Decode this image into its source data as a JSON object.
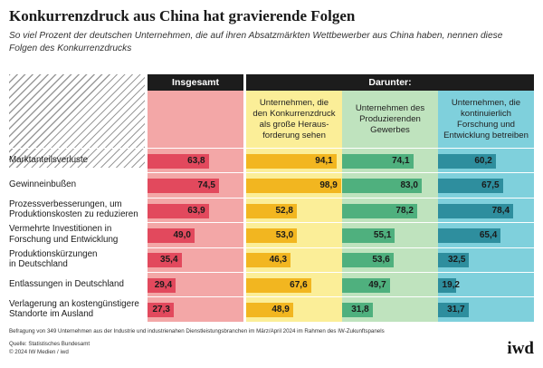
{
  "title": "Konkurrenzdruck aus China hat gravierende Folgen",
  "subtitle": "So viel Prozent der deutschen Unternehmen, die auf ihren Absatzmärkten Wettbewerber aus China haben, nennen diese Folgen des Konkurrenzdrucks",
  "header_insgesamt": "Insgesamt",
  "header_darunter": "Darunter:",
  "footnote": "Befragung von 349 Unternehmen aus der Industrie und industrienahen Dienstleistungsbranchen im März/April 2024 im Rahmen des IW-Zukunftspanels",
  "source": "Quelle: Statistisches Bundesamt",
  "copyright": "© 2024 IW Medien / iwd",
  "logo_text": "iwd",
  "colors": {
    "insgesamt_bg": "#f3a7a7",
    "insgesamt_bar": "#e2495d",
    "gross_bg": "#fbee98",
    "gross_bar": "#f2b620",
    "gewerbe_bg": "#bfe3be",
    "gewerbe_bar": "#4fb07e",
    "forschung_bg": "#7fd0dc",
    "forschung_bar": "#2e8e9e"
  },
  "chart_data": {
    "type": "bar",
    "title": "Konkurrenzdruck aus China hat gravierende Folgen",
    "categories": [
      "Marktanteilsverluste",
      "Gewinneinbußen",
      "Prozessverbesserungen, um Produktionskosten zu reduzieren",
      "Vermehrte Investitionen in Forschung und Entwicklung",
      "Produktionskürzungen in Deutschland",
      "Entlassungen in Deutschland",
      "Verlagerung an kostengünstigere Standorte im Ausland"
    ],
    "category_lines": [
      [
        "Marktanteilsverluste"
      ],
      [
        "Gewinneinbußen"
      ],
      [
        "Prozessverbesserungen, um",
        "Produktionskosten zu reduzieren"
      ],
      [
        "Vermehrte Investitionen in",
        "Forschung und Entwicklung"
      ],
      [
        "Produktionskürzungen",
        "in Deutschland"
      ],
      [
        "Entlassungen in Deutschland"
      ],
      [
        "Verlagerung an kostengünstigere",
        "Standorte im Ausland"
      ]
    ],
    "series": [
      {
        "name": "Insgesamt",
        "header_lines": [],
        "values": [
          63.8,
          74.5,
          63.9,
          49.0,
          35.4,
          29.4,
          27.3
        ],
        "labels": [
          "63,8",
          "74,5",
          "63,9",
          "49,0",
          "35,4",
          "29,4",
          "27,3"
        ]
      },
      {
        "name": "Unternehmen, die den Konkurrenzdruck als große Herausforderung sehen",
        "header_lines": [
          "Unternehmen, die",
          "den Konkurrenzdruck",
          "als große Heraus-",
          "forderung sehen"
        ],
        "values": [
          94.1,
          98.9,
          52.8,
          53.0,
          46.3,
          67.6,
          48.9
        ],
        "labels": [
          "94,1",
          "98,9",
          "52,8",
          "53,0",
          "46,3",
          "67,6",
          "48,9"
        ]
      },
      {
        "name": "Unternehmen des Produzierenden Gewerbes",
        "header_lines": [
          "Unternehmen des",
          "Produzierenden",
          "Gewerbes"
        ],
        "values": [
          74.1,
          83.0,
          78.2,
          55.1,
          53.6,
          49.7,
          31.8
        ],
        "labels": [
          "74,1",
          "83,0",
          "78,2",
          "55,1",
          "53,6",
          "49,7",
          "31,8"
        ]
      },
      {
        "name": "Unternehmen, die kontinuierlich Forschung und Entwicklung betreiben",
        "header_lines": [
          "Unternehmen, die",
          "kontinuierlich",
          "Forschung und",
          "Entwicklung betreiben"
        ],
        "values": [
          60.2,
          67.5,
          78.4,
          65.4,
          32.5,
          19.2,
          31.7
        ],
        "labels": [
          "60,2",
          "67,5",
          "78,4",
          "65,4",
          "32,5",
          "19,2",
          "31,7"
        ]
      }
    ],
    "xlim": [
      0,
      100
    ],
    "unit": "Prozent"
  }
}
